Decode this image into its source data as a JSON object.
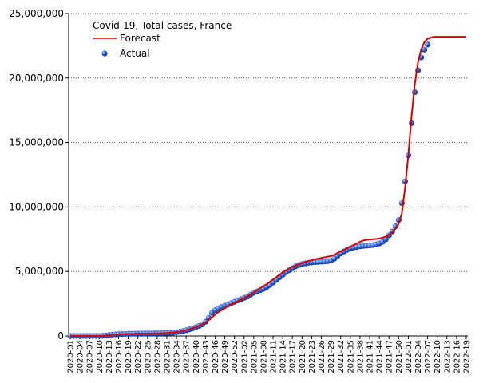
{
  "chart_data": {
    "type": "line",
    "title": "Covid-19, Total cases, France",
    "categories": [
      "2020-01",
      null,
      null,
      "2020-04",
      null,
      null,
      "2020-07",
      null,
      null,
      "2020-10",
      null,
      null,
      "2020-13",
      null,
      null,
      "2020-16",
      null,
      null,
      "2020-19",
      null,
      null,
      "2020-22",
      null,
      null,
      "2020-25",
      null,
      null,
      "2020-28",
      null,
      null,
      "2020-31",
      null,
      null,
      "2020-34",
      null,
      null,
      "2020-37",
      null,
      null,
      "2020-40",
      null,
      null,
      "2020-43",
      null,
      null,
      "2020-46",
      null,
      null,
      "2020-49",
      null,
      null,
      "2020-52",
      null,
      null,
      "2021-02",
      null,
      null,
      "2021-05",
      null,
      null,
      "2021-08",
      null,
      null,
      "2021-11",
      null,
      null,
      "2021-14",
      null,
      null,
      "2021-17",
      null,
      null,
      "2021-20",
      null,
      null,
      "2021-23",
      null,
      null,
      "2021-26",
      null,
      null,
      "2021-29",
      null,
      null,
      "2021-32",
      null,
      null,
      "2021-35",
      null,
      null,
      "2021-38",
      null,
      null,
      "2021-41",
      null,
      null,
      "2021-44",
      null,
      null,
      "2021-47",
      null,
      null,
      "2021-50",
      null,
      null,
      "2022-01",
      null,
      null,
      "2022-04",
      null,
      null,
      "2022-07",
      null,
      null,
      "2022-10",
      null,
      null,
      "2022-13",
      null,
      null,
      "2022-16",
      null,
      null,
      "2022-19"
    ],
    "series": [
      {
        "name": "Forecast",
        "color": "#dd0000",
        "style": "line",
        "values": [
          0,
          0,
          0,
          0,
          0,
          0,
          0,
          0,
          0,
          0,
          10000,
          30000,
          60000,
          90000,
          110000,
          130000,
          140000,
          150000,
          160000,
          165000,
          170000,
          175000,
          180000,
          185000,
          190000,
          195000,
          200000,
          205000,
          210000,
          220000,
          235000,
          255000,
          280000,
          310000,
          350000,
          400000,
          460000,
          530000,
          610000,
          700000,
          800000,
          920000,
          1050000,
          1250000,
          1450000,
          1650000,
          1850000,
          2000000,
          2150000,
          2300000,
          2450000,
          2580000,
          2700000,
          2820000,
          2950000,
          3080000,
          3220000,
          3380000,
          3540000,
          3700000,
          3860000,
          4020000,
          4200000,
          4380000,
          4560000,
          4740000,
          4920000,
          5080000,
          5220000,
          5350000,
          5460000,
          5560000,
          5650000,
          5730000,
          5800000,
          5870000,
          5940000,
          6000000,
          6050000,
          6100000,
          6150000,
          6200000,
          6300000,
          6430000,
          6560000,
          6680000,
          6800000,
          6920000,
          7050000,
          7180000,
          7300000,
          7400000,
          7450000,
          7480000,
          7500000,
          7520000,
          7550000,
          7620000,
          7700000,
          7850000,
          8050000,
          8300000,
          8700000,
          9500000,
          11500000,
          14000000,
          17000000,
          19500000,
          21200000,
          22200000,
          22800000,
          23050000,
          23150000,
          23200000,
          23200000,
          23200000,
          23200000,
          23200000,
          23200000,
          23200000,
          23200000,
          23200000,
          23200000,
          23200000
        ]
      },
      {
        "name": "Actual",
        "color": "#1f4fc8",
        "style": "dots",
        "values": [
          0,
          0,
          0,
          0,
          0,
          0,
          0,
          0,
          0,
          5000,
          10000,
          40000,
          70000,
          100000,
          120000,
          140000,
          150000,
          160000,
          170000,
          175000,
          180000,
          185000,
          190000,
          192000,
          195000,
          198000,
          200000,
          205000,
          210000,
          215000,
          225000,
          240000,
          260000,
          290000,
          330000,
          380000,
          440000,
          510000,
          590000,
          680000,
          780000,
          900000,
          1100000,
          1400000,
          1800000,
          2000000,
          2150000,
          2250000,
          2350000,
          2450000,
          2550000,
          2650000,
          2750000,
          2850000,
          2950000,
          3050000,
          3200000,
          3350000,
          3450000,
          3550000,
          3650000,
          3800000,
          3950000,
          4150000,
          4350000,
          4550000,
          4750000,
          4950000,
          5100000,
          5250000,
          5400000,
          5500000,
          5580000,
          5630000,
          5670000,
          5700000,
          5720000,
          5740000,
          5760000,
          5780000,
          5800000,
          5850000,
          6000000,
          6200000,
          6400000,
          6550000,
          6680000,
          6780000,
          6850000,
          6900000,
          6950000,
          6980000,
          7000000,
          7020000,
          7050000,
          7100000,
          7170000,
          7300000,
          7500000,
          7800000,
          8100000,
          8500000,
          9000000,
          10300000,
          12000000,
          14000000,
          16500000,
          18900000,
          20600000,
          21600000,
          22200000,
          22600000,
          null,
          null,
          null,
          null,
          null,
          null,
          null,
          null,
          null,
          null,
          null,
          null
        ]
      }
    ],
    "ylim": [
      0,
      25000000
    ],
    "yticks": [
      {
        "value": 0,
        "label": "0"
      },
      {
        "value": 5000000,
        "label": "5,000,000"
      },
      {
        "value": 10000000,
        "label": "10,000,000"
      },
      {
        "value": 15000000,
        "label": "15,000,000"
      },
      {
        "value": 20000000,
        "label": "20,000,000"
      },
      {
        "value": 25000000,
        "label": "25,000,000"
      }
    ],
    "grid": true
  }
}
